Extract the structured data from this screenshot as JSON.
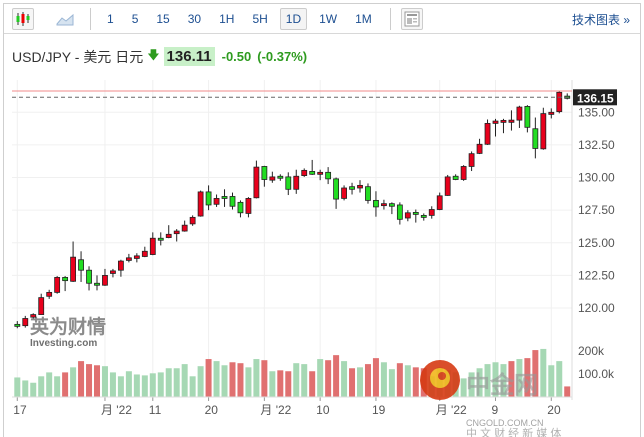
{
  "toolbar": {
    "intervals": [
      "1",
      "5",
      "15",
      "30",
      "1H",
      "5H",
      "1D",
      "1W",
      "1M"
    ],
    "active_interval": "1D",
    "tech_chart_label": "技术图表 »"
  },
  "header": {
    "instrument": "USD/JPY - 美元 日元",
    "price": "136.11",
    "change": "-0.50",
    "change_pct": "(-0.37%)",
    "direction": "down"
  },
  "colors": {
    "up": "#e8001c",
    "down": "#22dd22",
    "vol_up": "#e07070",
    "vol_down": "#a6d8b4",
    "last_line": "#f28b8b",
    "up_text": "#2e9b1f"
  },
  "watermarks": {
    "left_cn": "英为财情",
    "left_en": "Investing.com",
    "right_cn": "中金网",
    "right_en": "CNGOLD.COM.CN",
    "right_sub": "中 文 财 经 新 媒 体"
  },
  "chart_data": {
    "type": "candlestick",
    "y_ticks": [
      "135.00",
      "132.50",
      "130.00",
      "127.50",
      "125.00",
      "122.50",
      "120.00"
    ],
    "y_tick_values": [
      135,
      132.5,
      130,
      127.5,
      125,
      122.5,
      120
    ],
    "last_price_label": "136.15",
    "last_price": 136.15,
    "high_line": 136.63,
    "vol_ticks": [
      "200k",
      "100.0k"
    ],
    "vol_tick_values": [
      200,
      100
    ],
    "x_labels": [
      {
        "i": 0,
        "t": "17"
      },
      {
        "i": 11,
        "t": "月 '22"
      },
      {
        "i": 17,
        "t": "11"
      },
      {
        "i": 24,
        "t": "20"
      },
      {
        "i": 31,
        "t": "月 '22"
      },
      {
        "i": 38,
        "t": "10"
      },
      {
        "i": 45,
        "t": "19"
      },
      {
        "i": 53,
        "t": "月 '22"
      },
      {
        "i": 60,
        "t": "9"
      },
      {
        "i": 67,
        "t": "20"
      }
    ],
    "ohlc": [
      [
        118.75,
        119.0,
        118.45,
        118.6
      ],
      [
        118.65,
        119.4,
        118.5,
        119.2
      ],
      [
        119.3,
        119.6,
        119.2,
        119.5
      ],
      [
        119.5,
        121.1,
        119.5,
        120.8
      ],
      [
        120.9,
        121.4,
        120.7,
        121.2
      ],
      [
        121.2,
        122.45,
        121.1,
        122.35
      ],
      [
        122.35,
        122.45,
        121.3,
        122.1
      ],
      [
        122.05,
        125.1,
        122.0,
        123.9
      ],
      [
        123.7,
        124.35,
        122.0,
        122.9
      ],
      [
        122.9,
        123.2,
        121.35,
        121.9
      ],
      [
        121.9,
        122.5,
        121.35,
        121.75
      ],
      [
        121.75,
        123.0,
        121.7,
        122.5
      ],
      [
        122.65,
        123.0,
        122.35,
        122.85
      ],
      [
        122.9,
        123.7,
        122.4,
        123.6
      ],
      [
        123.65,
        124.15,
        123.5,
        123.85
      ],
      [
        123.8,
        124.2,
        123.5,
        124.0
      ],
      [
        123.95,
        124.7,
        123.9,
        124.35
      ],
      [
        124.1,
        125.8,
        124.05,
        125.35
      ],
      [
        125.35,
        125.8,
        124.8,
        125.2
      ],
      [
        125.4,
        126.35,
        125.35,
        125.65
      ],
      [
        125.7,
        126.05,
        125.1,
        125.9
      ],
      [
        125.9,
        126.7,
        125.85,
        126.35
      ],
      [
        126.45,
        127.1,
        126.3,
        126.95
      ],
      [
        127.05,
        129.0,
        127.0,
        128.9
      ],
      [
        128.9,
        129.4,
        127.5,
        127.9
      ],
      [
        127.95,
        128.7,
        127.75,
        128.4
      ],
      [
        128.55,
        129.1,
        127.75,
        128.4
      ],
      [
        128.55,
        128.85,
        127.55,
        127.8
      ],
      [
        128.1,
        128.25,
        126.95,
        127.3
      ],
      [
        127.25,
        128.5,
        126.95,
        128.4
      ],
      [
        128.45,
        131.3,
        128.4,
        130.8
      ],
      [
        130.85,
        130.9,
        129.3,
        129.85
      ],
      [
        129.8,
        130.45,
        129.6,
        130.05
      ],
      [
        130.1,
        130.25,
        129.75,
        129.95
      ],
      [
        130.05,
        130.4,
        128.66,
        129.1
      ],
      [
        129.1,
        130.6,
        128.75,
        130.1
      ],
      [
        130.15,
        130.7,
        130.05,
        130.55
      ],
      [
        130.47,
        131.35,
        130.2,
        130.25
      ],
      [
        130.25,
        130.6,
        129.8,
        130.4
      ],
      [
        130.4,
        130.8,
        129.5,
        129.9
      ],
      [
        129.9,
        130.0,
        127.6,
        128.35
      ],
      [
        128.4,
        129.4,
        128.25,
        129.2
      ],
      [
        129.3,
        129.6,
        128.7,
        129.1
      ],
      [
        129.2,
        129.8,
        128.85,
        129.4
      ],
      [
        129.3,
        129.55,
        128.0,
        128.25
      ],
      [
        128.25,
        128.95,
        127.0,
        127.75
      ],
      [
        127.85,
        128.3,
        127.55,
        128.0
      ],
      [
        128.0,
        128.1,
        127.2,
        127.8
      ],
      [
        127.9,
        128.1,
        126.4,
        126.8
      ],
      [
        126.9,
        127.5,
        126.65,
        127.3
      ],
      [
        127.33,
        127.55,
        126.55,
        127.2
      ],
      [
        127.1,
        127.25,
        126.7,
        126.95
      ],
      [
        127.1,
        127.8,
        126.85,
        127.55
      ],
      [
        127.55,
        128.85,
        127.5,
        128.6
      ],
      [
        128.63,
        130.2,
        128.6,
        130.05
      ],
      [
        130.1,
        130.25,
        129.8,
        129.85
      ],
      [
        129.85,
        130.95,
        129.75,
        130.85
      ],
      [
        130.85,
        132.0,
        130.5,
        131.83
      ],
      [
        131.85,
        132.97,
        131.8,
        132.55
      ],
      [
        132.55,
        134.45,
        132.5,
        134.15
      ],
      [
        134.15,
        134.5,
        133.15,
        134.33
      ],
      [
        134.23,
        134.5,
        133.4,
        134.38
      ],
      [
        134.23,
        135.15,
        133.6,
        134.4
      ],
      [
        134.4,
        135.5,
        133.8,
        135.4
      ],
      [
        135.45,
        135.55,
        133.46,
        133.85
      ],
      [
        133.74,
        134.6,
        131.47,
        132.23
      ],
      [
        132.2,
        135.35,
        132.13,
        134.9
      ],
      [
        134.84,
        135.3,
        134.53,
        135.0
      ],
      [
        135.05,
        136.63,
        134.92,
        136.53
      ],
      [
        136.24,
        136.45,
        135.99,
        136.07
      ]
    ],
    "volume_k": [
      85,
      72,
      62,
      90,
      107,
      90,
      107,
      129,
      156,
      143,
      138,
      134,
      107,
      90,
      112,
      98,
      94,
      103,
      107,
      125,
      125,
      143,
      90,
      134,
      165,
      156,
      138,
      151,
      147,
      129,
      165,
      160,
      112,
      116,
      112,
      147,
      143,
      112,
      165,
      160,
      182,
      156,
      125,
      129,
      143,
      169,
      151,
      121,
      147,
      138,
      129,
      125,
      90,
      129,
      116,
      107,
      81,
      107,
      125,
      143,
      151,
      143,
      156,
      165,
      169,
      204,
      209,
      138,
      156,
      46
    ],
    "volume_dir": "gggggg r g rrr ggggggggggggg r gg rr gg r g rr gg r g rr g r g rr gg r g rr gggggggggg r g rr ggg r"
  }
}
